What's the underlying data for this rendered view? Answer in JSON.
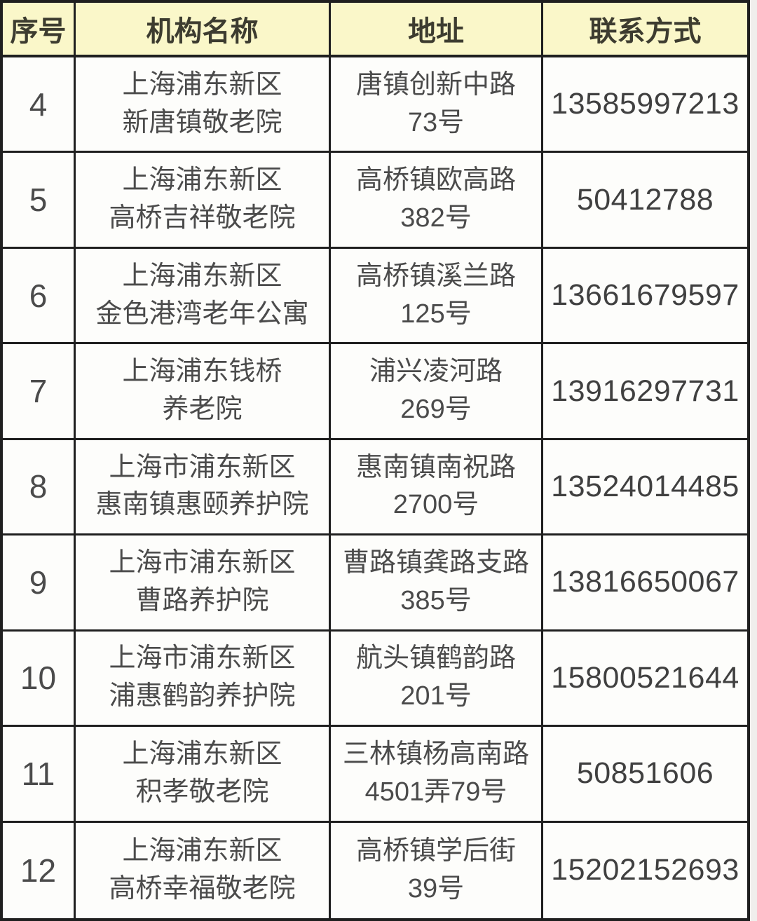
{
  "chart_data": {
    "type": "table",
    "columns": [
      "序号",
      "机构名称",
      "地址",
      "联系方式"
    ],
    "rows": [
      {
        "no": "4",
        "name": [
          "上海浦东新区",
          "新唐镇敬老院"
        ],
        "address": [
          "唐镇创新中路",
          "73号"
        ],
        "phone": "13585997213"
      },
      {
        "no": "5",
        "name": [
          "上海浦东新区",
          "高桥吉祥敬老院"
        ],
        "address": [
          "高桥镇欧高路",
          "382号"
        ],
        "phone": "50412788"
      },
      {
        "no": "6",
        "name": [
          "上海浦东新区",
          "金色港湾老年公寓"
        ],
        "address": [
          "高桥镇溪兰路",
          "125号"
        ],
        "phone": "13661679597"
      },
      {
        "no": "7",
        "name": [
          "上海浦东钱桥",
          "养老院"
        ],
        "address": [
          "浦兴凌河路",
          "269号"
        ],
        "phone": "13916297731"
      },
      {
        "no": "8",
        "name": [
          "上海市浦东新区",
          "惠南镇惠颐养护院"
        ],
        "address": [
          "惠南镇南祝路",
          "2700号"
        ],
        "phone": "13524014485"
      },
      {
        "no": "9",
        "name": [
          "上海市浦东新区",
          "曹路养护院"
        ],
        "address": [
          "曹路镇龚路支路",
          "385号"
        ],
        "phone": "13816650067"
      },
      {
        "no": "10",
        "name": [
          "上海市浦东新区",
          "浦惠鹤韵养护院"
        ],
        "address": [
          "航头镇鹤韵路",
          "201号"
        ],
        "phone": "15800521644"
      },
      {
        "no": "11",
        "name": [
          "上海浦东新区",
          "积孝敬老院"
        ],
        "address": [
          "三林镇杨高南路",
          "4501弄79号"
        ],
        "phone": "50851606"
      },
      {
        "no": "12",
        "name": [
          "上海浦东新区",
          "高桥幸福敬老院"
        ],
        "address": [
          "高桥镇学后街",
          "39号"
        ],
        "phone": "15202152693"
      }
    ]
  },
  "colors": {
    "header_bg": "#faf7c9",
    "cell_bg": "#fdfdfb",
    "border": "#1f1f1f",
    "header_text": "#3d3c30",
    "body_text": "#4b4b4b",
    "phone_text": "#404040",
    "page_bg": "#f0eeec"
  }
}
